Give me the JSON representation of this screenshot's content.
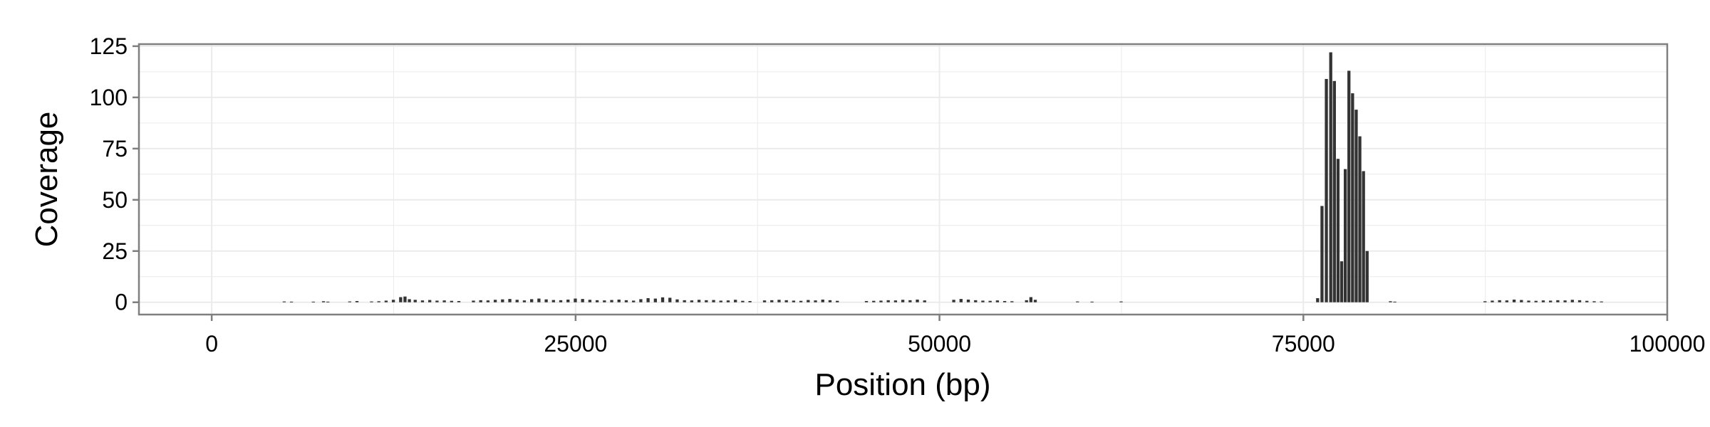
{
  "chart_data": {
    "type": "bar",
    "xlabel": "Position (bp)",
    "ylabel": "Coverage",
    "xlim": [
      -5000,
      100000
    ],
    "ylim": [
      -6,
      126
    ],
    "x_ticks": [
      0,
      25000,
      50000,
      75000,
      100000
    ],
    "y_ticks": [
      0,
      25,
      50,
      75,
      100,
      125
    ],
    "grid": true,
    "bar_color": "#333333",
    "panel_background": "#ffffff",
    "grid_color": "#ebebeb",
    "series": [
      {
        "values": [
          [
            5000,
            0.4
          ],
          [
            5500,
            0.3
          ],
          [
            7000,
            0.3
          ],
          [
            7700,
            0.5
          ],
          [
            8000,
            0.3
          ],
          [
            9500,
            0.4
          ],
          [
            10000,
            0.6
          ],
          [
            11000,
            0.4
          ],
          [
            11500,
            0.5
          ],
          [
            12000,
            0.8
          ],
          [
            12500,
            1.2
          ],
          [
            13000,
            2.5
          ],
          [
            13300,
            2.8
          ],
          [
            13600,
            1.5
          ],
          [
            14000,
            1.2
          ],
          [
            14500,
            0.9
          ],
          [
            15000,
            1.1
          ],
          [
            15500,
            0.8
          ],
          [
            16000,
            0.9
          ],
          [
            16500,
            0.7
          ],
          [
            17000,
            0.6
          ],
          [
            18000,
            0.8
          ],
          [
            18500,
            1.0
          ],
          [
            19000,
            0.9
          ],
          [
            19500,
            1.2
          ],
          [
            20000,
            1.4
          ],
          [
            20500,
            1.6
          ],
          [
            21000,
            1.2
          ],
          [
            21500,
            0.9
          ],
          [
            22000,
            1.5
          ],
          [
            22500,
            1.8
          ],
          [
            23000,
            1.4
          ],
          [
            23500,
            1.1
          ],
          [
            24000,
            1.0
          ],
          [
            24500,
            1.3
          ],
          [
            25000,
            1.8
          ],
          [
            25500,
            1.6
          ],
          [
            26000,
            1.2
          ],
          [
            26500,
            1.0
          ],
          [
            27000,
            0.9
          ],
          [
            27500,
            1.1
          ],
          [
            28000,
            1.3
          ],
          [
            28500,
            1.0
          ],
          [
            29000,
            0.8
          ],
          [
            29500,
            1.5
          ],
          [
            30000,
            2.0
          ],
          [
            30500,
            1.8
          ],
          [
            31000,
            2.4
          ],
          [
            31500,
            2.2
          ],
          [
            32000,
            1.4
          ],
          [
            32500,
            1.0
          ],
          [
            33000,
            0.9
          ],
          [
            33500,
            1.2
          ],
          [
            34000,
            1.0
          ],
          [
            34500,
            1.1
          ],
          [
            35000,
            0.8
          ],
          [
            35500,
            0.9
          ],
          [
            36000,
            1.2
          ],
          [
            36500,
            0.7
          ],
          [
            37000,
            0.6
          ],
          [
            38000,
            0.9
          ],
          [
            38500,
            1.0
          ],
          [
            39000,
            1.2
          ],
          [
            39500,
            1.0
          ],
          [
            40000,
            0.8
          ],
          [
            40500,
            0.7
          ],
          [
            41000,
            1.1
          ],
          [
            41500,
            0.9
          ],
          [
            42000,
            1.3
          ],
          [
            42500,
            1.0
          ],
          [
            43000,
            0.7
          ],
          [
            45000,
            0.6
          ],
          [
            45500,
            0.7
          ],
          [
            46000,
            0.8
          ],
          [
            46500,
            1.0
          ],
          [
            47000,
            0.9
          ],
          [
            47500,
            1.2
          ],
          [
            48000,
            1.0
          ],
          [
            48500,
            1.3
          ],
          [
            49000,
            0.9
          ],
          [
            51000,
            1.2
          ],
          [
            51500,
            1.6
          ],
          [
            52000,
            1.3
          ],
          [
            52500,
            1.0
          ],
          [
            53000,
            0.8
          ],
          [
            53500,
            0.7
          ],
          [
            54000,
            0.9
          ],
          [
            54500,
            0.6
          ],
          [
            55000,
            0.5
          ],
          [
            56000,
            1.0
          ],
          [
            56300,
            2.5
          ],
          [
            56600,
            1.2
          ],
          [
            59500,
            0.4
          ],
          [
            60500,
            0.3
          ],
          [
            62500,
            0.4
          ],
          [
            76000,
            2.0
          ],
          [
            76300,
            47
          ],
          [
            76600,
            109
          ],
          [
            76900,
            122
          ],
          [
            77150,
            108
          ],
          [
            77400,
            70
          ],
          [
            77650,
            20
          ],
          [
            77900,
            65
          ],
          [
            78150,
            113
          ],
          [
            78400,
            102
          ],
          [
            78650,
            94
          ],
          [
            78900,
            81
          ],
          [
            79150,
            64
          ],
          [
            79400,
            25
          ],
          [
            81000,
            0.5
          ],
          [
            81300,
            0.3
          ],
          [
            87500,
            0.5
          ],
          [
            88000,
            0.8
          ],
          [
            88500,
            1.0
          ],
          [
            89000,
            0.9
          ],
          [
            89500,
            1.3
          ],
          [
            90000,
            1.1
          ],
          [
            90500,
            0.8
          ],
          [
            91000,
            0.7
          ],
          [
            91500,
            0.9
          ],
          [
            92000,
            0.8
          ],
          [
            92500,
            1.0
          ],
          [
            93000,
            0.9
          ],
          [
            93500,
            1.2
          ],
          [
            94000,
            1.0
          ],
          [
            94500,
            0.7
          ],
          [
            95000,
            0.5
          ],
          [
            95500,
            0.4
          ]
        ]
      }
    ]
  }
}
